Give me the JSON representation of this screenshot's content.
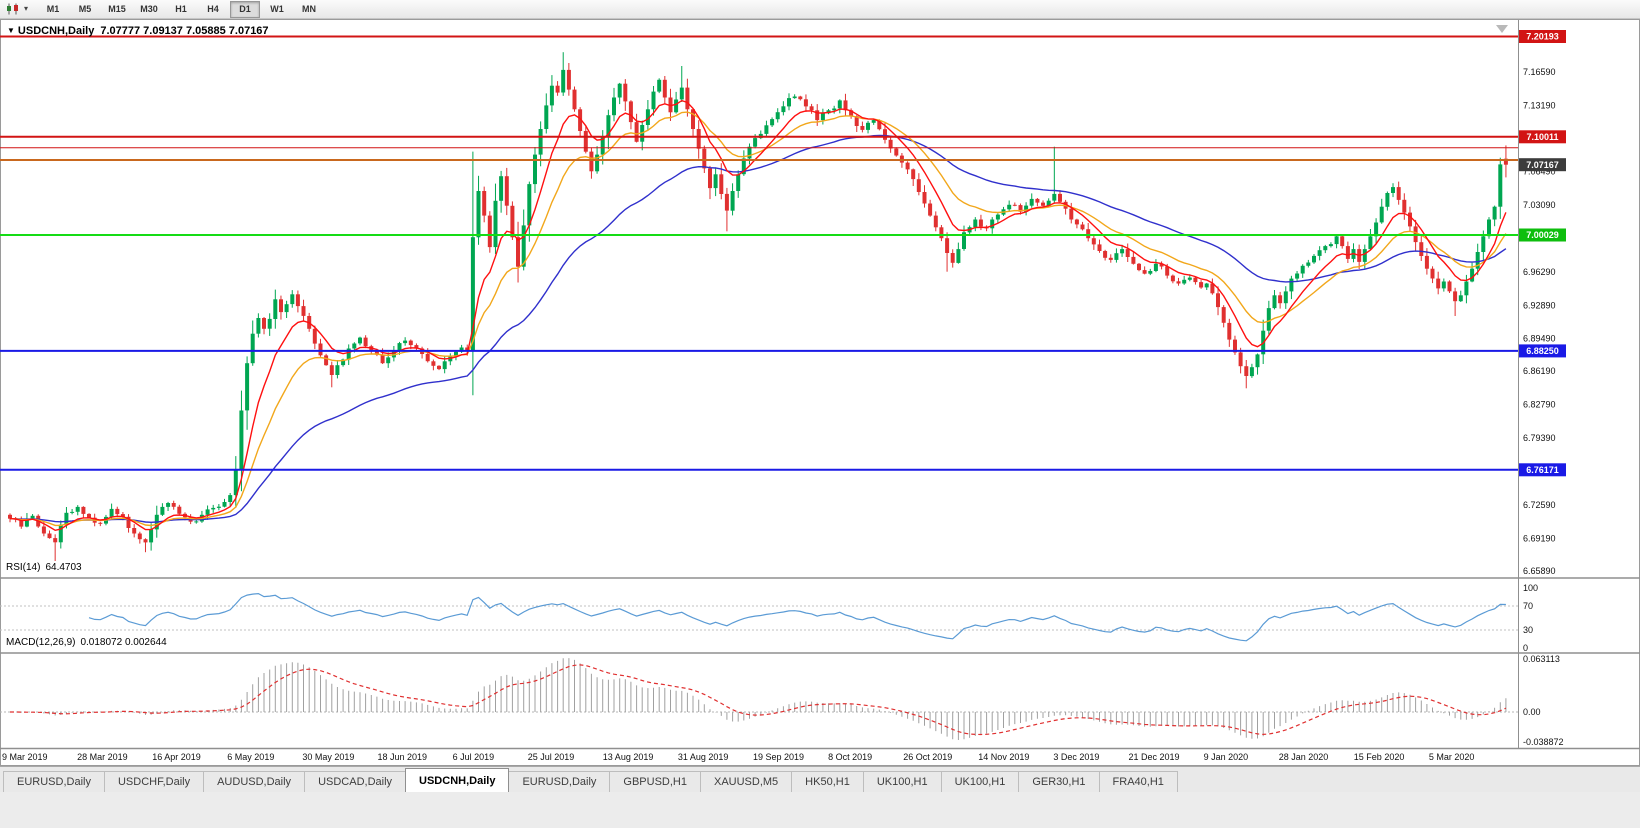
{
  "toolbar": {
    "caret": "▾",
    "timeframes": [
      {
        "label": "M1",
        "active": false
      },
      {
        "label": "M5",
        "active": false
      },
      {
        "label": "M15",
        "active": false
      },
      {
        "label": "M30",
        "active": false
      },
      {
        "label": "H1",
        "active": false
      },
      {
        "label": "H4",
        "active": false
      },
      {
        "label": "D1",
        "active": true
      },
      {
        "label": "W1",
        "active": false
      },
      {
        "label": "MN",
        "active": false
      }
    ]
  },
  "chart": {
    "marker": "▼",
    "title": "USDCNH,Daily",
    "ohlc": "7.07777 7.09137 7.05885 7.07167"
  },
  "rsi_panel": {
    "label": "RSI(14)",
    "value": "64.4703",
    "line_color": "#5B9BD5",
    "ticks": [
      {
        "label": "100",
        "v": 100
      },
      {
        "label": "70",
        "v": 70
      },
      {
        "label": "30",
        "v": 30
      },
      {
        "label": "0",
        "v": 0
      }
    ],
    "levels": [
      70,
      30
    ]
  },
  "macd_panel": {
    "label": "MACD(12,26,9)",
    "values": "0.018072 0.002644",
    "histogram_color": "#a0a0a0",
    "signal_color": "#E03030",
    "ticks": [
      {
        "label": "0.063113",
        "v": 0.063113
      },
      {
        "label": "0.00",
        "v": 0
      },
      {
        "label": "-0.038872",
        "v": -0.038872
      }
    ]
  },
  "price_axis": {
    "ticks": [
      "7.16590",
      "7.13190",
      "7.09790",
      "7.06490",
      "7.03090",
      "6.99690",
      "6.96290",
      "6.92890",
      "6.89490",
      "6.86190",
      "6.82790",
      "6.79390",
      "6.75990",
      "6.72590",
      "6.69190",
      "6.65890"
    ],
    "badges": [
      {
        "value": "7.20193",
        "color": "#D21414"
      },
      {
        "value": "7.10011",
        "color": "#D21414"
      },
      {
        "value": "7.07167",
        "color": "#3C3C3C"
      },
      {
        "value": "7.00029",
        "color": "#0EBE0E"
      },
      {
        "value": "6.88250",
        "color": "#1A1AE6"
      },
      {
        "value": "6.76171",
        "color": "#1A1AE6"
      }
    ]
  },
  "time_axis": {
    "labels": [
      "9 Mar 2019",
      "28 Mar 2019",
      "16 Apr 2019",
      "6 May 2019",
      "30 May 2019",
      "18 Jun 2019",
      "6 Jul 2019",
      "25 Jul 2019",
      "13 Aug 2019",
      "31 Aug 2019",
      "19 Sep 2019",
      "8 Oct 2019",
      "26 Oct 2019",
      "14 Nov 2019",
      "3 Dec 2019",
      "21 Dec 2019",
      "9 Jan 2020",
      "28 Jan 2020",
      "15 Feb 2020",
      "5 Mar 2020"
    ]
  },
  "tabs": [
    {
      "label": "EURUSD,Daily",
      "active": false
    },
    {
      "label": "USDCHF,Daily",
      "active": false
    },
    {
      "label": "AUDUSD,Daily",
      "active": false
    },
    {
      "label": "USDCAD,Daily",
      "active": false
    },
    {
      "label": "USDCNH,Daily",
      "active": true
    },
    {
      "label": "EURUSD,Daily",
      "active": false
    },
    {
      "label": "GBPUSD,H1",
      "active": false
    },
    {
      "label": "XAUUSD,M5",
      "active": false
    },
    {
      "label": "HK50,H1",
      "active": false
    },
    {
      "label": "UK100,H1",
      "active": false
    },
    {
      "label": "UK100,H1",
      "active": false
    },
    {
      "label": "GER30,H1",
      "active": false
    },
    {
      "label": "FRA40,H1",
      "active": false
    }
  ],
  "chart_data": {
    "type": "candlestick",
    "symbol": "USDCNH",
    "period": "Daily",
    "n_bars": 266,
    "up_color": "#00A651",
    "down_color": "#E03030",
    "last_bar": {
      "open": 7.07777,
      "high": 7.09137,
      "low": 7.05885,
      "close": 7.07167
    },
    "hlines": [
      {
        "price": 7.20193,
        "color": "#D21414",
        "width": 2
      },
      {
        "price": 7.10011,
        "color": "#D21414",
        "width": 2
      },
      {
        "price": 7.089,
        "color": "#D21414",
        "width": 1
      },
      {
        "price": 7.0765,
        "color": "#C9681E",
        "width": 2
      },
      {
        "price": 7.00029,
        "color": "#15DC15",
        "width": 2
      },
      {
        "price": 6.8825,
        "color": "#1A1AE6",
        "width": 2
      },
      {
        "price": 6.76171,
        "color": "#1A1AE6",
        "width": 2
      }
    ],
    "moving_averages": [
      {
        "name": "fast",
        "period": 8,
        "color": "#FF1010"
      },
      {
        "name": "medium",
        "period": 17,
        "color": "#F2A71B"
      },
      {
        "name": "slow",
        "period": 45,
        "color": "#3030CC"
      }
    ],
    "price_anchors": [
      [
        0,
        6.712
      ],
      [
        2,
        6.704
      ],
      [
        4,
        6.715
      ],
      [
        6,
        6.697
      ],
      [
        8,
        6.688
      ],
      [
        9,
        6.706
      ],
      [
        10,
        6.718
      ],
      [
        12,
        6.724
      ],
      [
        14,
        6.713
      ],
      [
        16,
        6.707
      ],
      [
        18,
        6.722
      ],
      [
        20,
        6.714
      ],
      [
        22,
        6.697
      ],
      [
        24,
        6.688
      ],
      [
        26,
        6.716
      ],
      [
        28,
        6.728
      ],
      [
        30,
        6.717
      ],
      [
        32,
        6.709
      ],
      [
        34,
        6.716
      ],
      [
        36,
        6.723
      ],
      [
        38,
        6.729
      ],
      [
        39,
        6.736
      ],
      [
        40,
        6.762
      ],
      [
        41,
        6.822
      ],
      [
        42,
        6.87
      ],
      [
        43,
        6.9
      ],
      [
        44,
        6.916
      ],
      [
        45,
        6.905
      ],
      [
        46,
        6.915
      ],
      [
        47,
        6.935
      ],
      [
        48,
        6.922
      ],
      [
        49,
        6.93
      ],
      [
        50,
        6.94
      ],
      [
        51,
        6.928
      ],
      [
        52,
        6.918
      ],
      [
        53,
        6.905
      ],
      [
        54,
        6.89
      ],
      [
        55,
        6.878
      ],
      [
        56,
        6.868
      ],
      [
        57,
        6.858
      ],
      [
        58,
        6.868
      ],
      [
        60,
        6.885
      ],
      [
        62,
        6.896
      ],
      [
        64,
        6.883
      ],
      [
        66,
        6.87
      ],
      [
        68,
        6.882
      ],
      [
        70,
        6.893
      ],
      [
        72,
        6.885
      ],
      [
        74,
        6.872
      ],
      [
        76,
        6.864
      ],
      [
        78,
        6.877
      ],
      [
        80,
        6.886
      ],
      [
        81,
        6.882
      ],
      [
        82,
        6.998
      ],
      [
        83,
        7.045
      ],
      [
        84,
        7.02
      ],
      [
        85,
        6.988
      ],
      [
        86,
        7.035
      ],
      [
        87,
        7.06
      ],
      [
        88,
        7.03
      ],
      [
        89,
        6.998
      ],
      [
        90,
        6.968
      ],
      [
        91,
        7.01
      ],
      [
        92,
        7.052
      ],
      [
        93,
        7.082
      ],
      [
        94,
        7.108
      ],
      [
        95,
        7.132
      ],
      [
        96,
        7.152
      ],
      [
        97,
        7.145
      ],
      [
        98,
        7.168
      ],
      [
        99,
        7.148
      ],
      [
        100,
        7.128
      ],
      [
        101,
        7.106
      ],
      [
        102,
        7.085
      ],
      [
        103,
        7.065
      ],
      [
        104,
        7.082
      ],
      [
        105,
        7.1
      ],
      [
        106,
        7.122
      ],
      [
        107,
        7.14
      ],
      [
        108,
        7.154
      ],
      [
        109,
        7.136
      ],
      [
        110,
        7.115
      ],
      [
        111,
        7.095
      ],
      [
        112,
        7.112
      ],
      [
        113,
        7.128
      ],
      [
        114,
        7.146
      ],
      [
        115,
        7.158
      ],
      [
        116,
        7.14
      ],
      [
        117,
        7.125
      ],
      [
        118,
        7.138
      ],
      [
        119,
        7.15
      ],
      [
        120,
        7.128
      ],
      [
        121,
        7.108
      ],
      [
        122,
        7.088
      ],
      [
        123,
        7.068
      ],
      [
        124,
        7.048
      ],
      [
        125,
        7.062
      ],
      [
        126,
        7.042
      ],
      [
        127,
        7.025
      ],
      [
        128,
        7.045
      ],
      [
        129,
        7.062
      ],
      [
        130,
        7.078
      ],
      [
        131,
        7.09
      ],
      [
        133,
        7.103
      ],
      [
        135,
        7.118
      ],
      [
        137,
        7.131
      ],
      [
        139,
        7.141
      ],
      [
        141,
        7.131
      ],
      [
        143,
        7.117
      ],
      [
        145,
        7.127
      ],
      [
        147,
        7.137
      ],
      [
        149,
        7.121
      ],
      [
        151,
        7.107
      ],
      [
        153,
        7.117
      ],
      [
        155,
        7.097
      ],
      [
        157,
        7.081
      ],
      [
        159,
        7.067
      ],
      [
        160,
        7.057
      ],
      [
        161,
        7.044
      ],
      [
        163,
        7.02
      ],
      [
        165,
        6.997
      ],
      [
        166,
        6.982
      ],
      [
        167,
        6.972
      ],
      [
        168,
        6.986
      ],
      [
        169,
        7.003
      ],
      [
        171,
        7.016
      ],
      [
        173,
        7.007
      ],
      [
        175,
        7.021
      ],
      [
        177,
        7.031
      ],
      [
        179,
        7.024
      ],
      [
        181,
        7.037
      ],
      [
        183,
        7.03
      ],
      [
        185,
        7.042
      ],
      [
        186,
        7.034
      ],
      [
        187,
        7.027
      ],
      [
        189,
        7.011
      ],
      [
        191,
        6.997
      ],
      [
        193,
        6.984
      ],
      [
        195,
        6.975
      ],
      [
        197,
        6.986
      ],
      [
        199,
        6.971
      ],
      [
        201,
        6.961
      ],
      [
        203,
        6.971
      ],
      [
        205,
        6.959
      ],
      [
        207,
        6.951
      ],
      [
        209,
        6.957
      ],
      [
        211,
        6.947
      ],
      [
        212,
        6.951
      ],
      [
        213,
        6.941
      ],
      [
        214,
        6.927
      ],
      [
        215,
        6.911
      ],
      [
        216,
        6.894
      ],
      [
        217,
        6.881
      ],
      [
        218,
        6.867
      ],
      [
        219,
        6.857
      ],
      [
        220,
        6.866
      ],
      [
        221,
        6.879
      ],
      [
        222,
        6.903
      ],
      [
        223,
        6.926
      ],
      [
        224,
        6.939
      ],
      [
        225,
        6.931
      ],
      [
        226,
        6.943
      ],
      [
        227,
        6.956
      ],
      [
        229,
        6.969
      ],
      [
        231,
        6.979
      ],
      [
        233,
        6.989
      ],
      [
        235,
        6.999
      ],
      [
        236,
        6.989
      ],
      [
        237,
        6.976
      ],
      [
        238,
        6.986
      ],
      [
        239,
        6.973
      ],
      [
        240,
        6.986
      ],
      [
        241,
        6.999
      ],
      [
        242,
        7.013
      ],
      [
        243,
        7.029
      ],
      [
        244,
        7.043
      ],
      [
        245,
        7.049
      ],
      [
        246,
        7.036
      ],
      [
        247,
        7.023
      ],
      [
        248,
        7.009
      ],
      [
        249,
        6.993
      ],
      [
        250,
        6.979
      ],
      [
        251,
        6.966
      ],
      [
        252,
        6.956
      ],
      [
        253,
        6.946
      ],
      [
        254,
        6.953
      ],
      [
        255,
        6.943
      ],
      [
        256,
        6.933
      ],
      [
        257,
        6.939
      ],
      [
        258,
        6.953
      ],
      [
        259,
        6.966
      ],
      [
        260,
        6.983
      ],
      [
        261,
        6.999
      ],
      [
        262,
        7.016
      ],
      [
        263,
        7.029
      ],
      [
        264,
        7.072
      ],
      [
        265,
        7.07167
      ]
    ],
    "overrides": {
      "8": {
        "low": 6.669
      },
      "24": {
        "low": 6.678
      },
      "57": {
        "low": 6.8455
      },
      "82": {
        "high": 7.085
      },
      "90": {
        "low": 6.952
      },
      "98": {
        "high": 7.186
      },
      "119": {
        "high": 7.172
      },
      "127": {
        "low": 7.004
      },
      "166": {
        "low": 6.963
      },
      "185": {
        "high": 7.09
      },
      "219": {
        "low": 6.8445
      },
      "256": {
        "low": 6.918
      },
      "265": {
        "open": 7.07777,
        "high": 7.09137,
        "low": 7.05885,
        "close": 7.07167
      }
    }
  }
}
